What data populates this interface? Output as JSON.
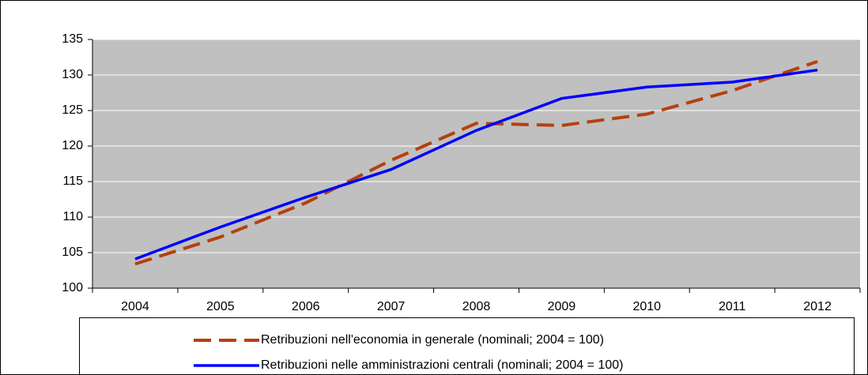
{
  "chart_data": {
    "type": "line",
    "categories": [
      "2004",
      "2005",
      "2006",
      "2007",
      "2008",
      "2009",
      "2010",
      "2011",
      "2012"
    ],
    "series": [
      {
        "name": "Retribuzioni nell'economia in generale (nominali; 2004 = 100)",
        "color": "#b5400f",
        "dashed": true,
        "values": [
          103.4,
          107.2,
          112.0,
          118.0,
          123.2,
          122.9,
          124.5,
          127.8,
          131.9
        ]
      },
      {
        "name": "Retribuzioni nelle amministrazioni centrali (nominali; 2004 = 100)",
        "color": "#0000ff",
        "dashed": false,
        "values": [
          104.1,
          108.6,
          112.8,
          116.7,
          122.2,
          126.7,
          128.3,
          129.0,
          130.7
        ]
      }
    ],
    "ylim": [
      100,
      135
    ],
    "yticks": [
      100,
      105,
      110,
      115,
      120,
      125,
      130,
      135
    ],
    "grid": true
  }
}
